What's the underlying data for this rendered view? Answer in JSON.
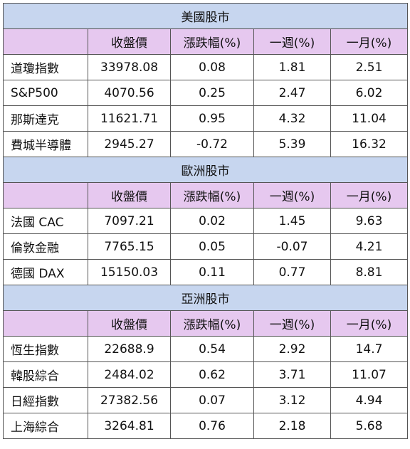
{
  "sections": [
    {
      "title": "美國股市",
      "headers": [
        "",
        "收盤價",
        "漲跌幅(%)",
        "一週(%)",
        "一月(%)"
      ],
      "rows": [
        {
          "name": "道瓊指數",
          "close": "33978.08",
          "change": "0.08",
          "week": "1.81",
          "month": "2.51"
        },
        {
          "name": "S&P500",
          "close": "4070.56",
          "change": "0.25",
          "week": "2.47",
          "month": "6.02"
        },
        {
          "name": "那斯達克",
          "close": "11621.71",
          "change": "0.95",
          "week": "4.32",
          "month": "11.04"
        },
        {
          "name": "費城半導體",
          "close": "2945.27",
          "change": "-0.72",
          "week": "5.39",
          "month": "16.32"
        }
      ]
    },
    {
      "title": "歐洲股市",
      "headers": [
        "",
        "收盤價",
        "漲跌幅(%)",
        "一週(%)",
        "一月(%)"
      ],
      "rows": [
        {
          "name": "法國 CAC",
          "close": "7097.21",
          "change": "0.02",
          "week": "1.45",
          "month": "9.63"
        },
        {
          "name": "倫敦金融",
          "close": "7765.15",
          "change": "0.05",
          "week": "-0.07",
          "month": "4.21"
        },
        {
          "name": "德國 DAX",
          "close": "15150.03",
          "change": "0.11",
          "week": "0.77",
          "month": "8.81"
        }
      ]
    },
    {
      "title": "亞洲股市",
      "headers": [
        "",
        "收盤價",
        "漲跌幅(%)",
        "一週(%)",
        "一月(%)"
      ],
      "rows": [
        {
          "name": "恆生指數",
          "close": "22688.9",
          "change": "0.54",
          "week": "2.92",
          "month": "14.7"
        },
        {
          "name": "韓股綜合",
          "close": "2484.02",
          "change": "0.62",
          "week": "3.71",
          "month": "11.07"
        },
        {
          "name": "日經指數",
          "close": "27382.56",
          "change": "0.07",
          "week": "3.12",
          "month": "4.94"
        },
        {
          "name": "上海綜合",
          "close": "3264.81",
          "change": "0.76",
          "week": "2.18",
          "month": "5.68"
        }
      ]
    }
  ],
  "colors": {
    "section_bg": "#c7d6ef",
    "header_bg": "#e6c8ef",
    "border": "#555555"
  }
}
